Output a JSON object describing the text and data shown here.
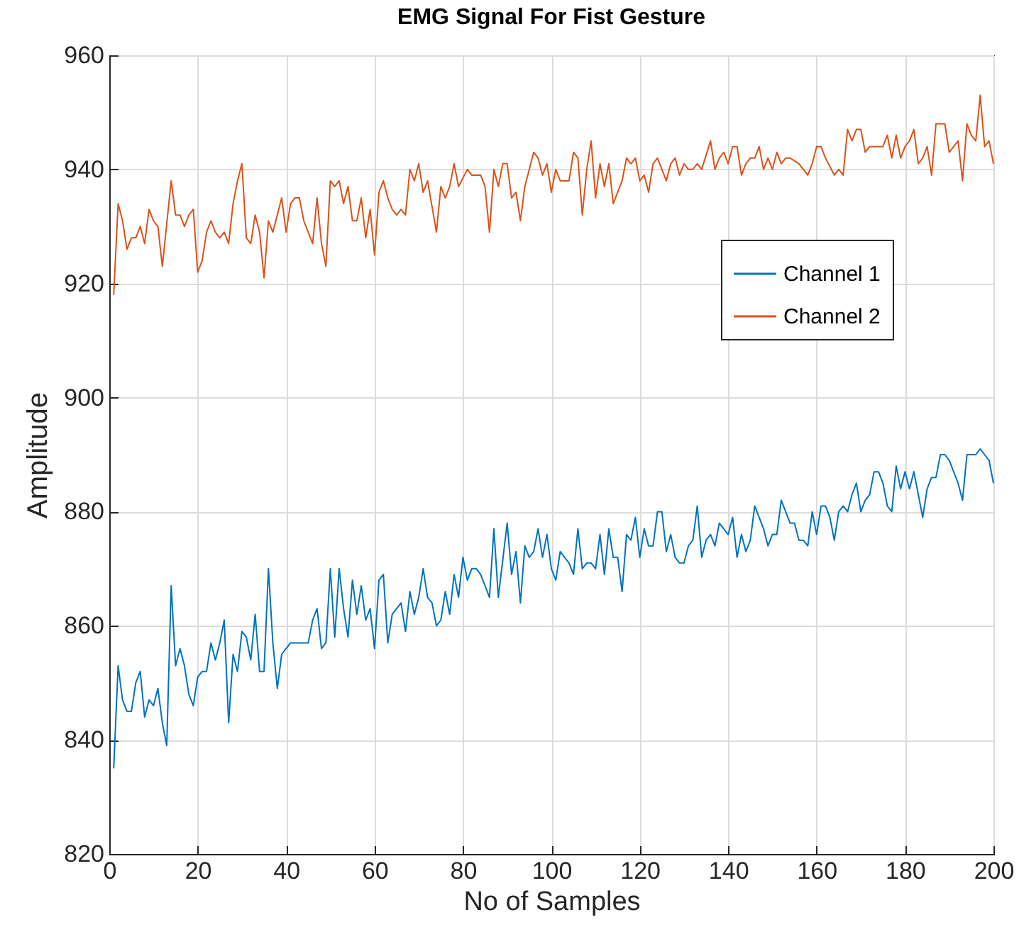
{
  "chart_data": {
    "type": "line",
    "title": "EMG Signal For Fist Gesture",
    "xlabel": "No of Samples",
    "ylabel": "Amplitude",
    "xlim": [
      0,
      200
    ],
    "xticks": [
      0,
      20,
      40,
      60,
      80,
      100,
      120,
      140,
      160,
      180,
      200
    ],
    "ylim": [
      820,
      960
    ],
    "yticks": [
      820,
      840,
      860,
      880,
      900,
      920,
      940,
      960
    ],
    "grid": true,
    "legend": "top right",
    "line_style": "solid",
    "series": [
      {
        "name": "Channel 1",
        "color": "#0072bd",
        "x": [
          1,
          2,
          3,
          4,
          5,
          6,
          7,
          8,
          9,
          10,
          11,
          12,
          13,
          14,
          15,
          16,
          17,
          18,
          19,
          20,
          21,
          22,
          23,
          24,
          25,
          26,
          27,
          28,
          29,
          30,
          31,
          32,
          33,
          34,
          35,
          36,
          37,
          38,
          39,
          40,
          41,
          45,
          46,
          47,
          48,
          49,
          50,
          51,
          52,
          53,
          54,
          55,
          56,
          57,
          58,
          59,
          60,
          61,
          62,
          63,
          64,
          65,
          66,
          67,
          68,
          69,
          70,
          71,
          72,
          73,
          74,
          75,
          76,
          77,
          78,
          79,
          80,
          81,
          82,
          83,
          84,
          85,
          86,
          87,
          88,
          90,
          91,
          92,
          93,
          94,
          95,
          96,
          97,
          98,
          99,
          100,
          101,
          102,
          103,
          104,
          105,
          106,
          107,
          108,
          109,
          110,
          111,
          112,
          113,
          114,
          115,
          116,
          117,
          118,
          119,
          120,
          121,
          122,
          123,
          124,
          125,
          126,
          127,
          128,
          129,
          130,
          131,
          132,
          133,
          134,
          135,
          136,
          137,
          138,
          139,
          140,
          141,
          142,
          143,
          144,
          145,
          146,
          147,
          148,
          149,
          150,
          151,
          152,
          153,
          154,
          155,
          156,
          157,
          158,
          159,
          160,
          161,
          162,
          163,
          164,
          165,
          166,
          167,
          168,
          169,
          170,
          171,
          172,
          173,
          174,
          175,
          176,
          177,
          178,
          179,
          180,
          181,
          182,
          183,
          184,
          185,
          186,
          187,
          188,
          189,
          190,
          191,
          192,
          193,
          194,
          195,
          196,
          197,
          198,
          199,
          200
        ],
        "values": [
          835,
          853,
          847,
          845,
          845,
          850,
          852,
          844,
          847,
          846,
          849,
          843,
          839,
          867,
          853,
          856,
          853,
          848,
          846,
          851,
          852,
          852,
          857,
          854,
          857,
          861,
          843,
          855,
          852,
          859,
          858,
          854,
          862,
          852,
          852,
          870,
          857,
          849,
          855,
          856,
          857,
          857,
          861,
          863,
          856,
          857,
          870,
          858,
          870,
          863,
          858,
          868,
          862,
          867,
          861,
          863,
          856,
          868,
          869,
          857,
          862,
          863,
          864,
          859,
          866,
          862,
          865,
          870,
          865,
          864,
          860,
          861,
          866,
          862,
          869,
          865,
          872,
          868,
          870,
          870,
          869,
          867,
          865,
          877,
          865,
          878,
          869,
          873,
          864,
          874,
          872,
          873,
          877,
          872,
          876,
          870,
          868,
          873,
          872,
          871,
          869,
          877,
          870,
          871,
          871,
          870,
          876,
          869,
          877,
          872,
          872,
          866,
          876,
          875,
          879,
          872,
          877,
          874,
          874,
          880,
          880,
          873,
          876,
          872,
          871,
          871,
          874,
          875,
          881,
          872,
          875,
          876,
          874,
          878,
          877,
          876,
          879,
          872,
          876,
          873,
          875,
          881,
          879,
          877,
          874,
          876,
          876,
          882,
          880,
          878,
          878,
          875,
          875,
          874,
          880,
          876,
          881,
          881,
          879,
          875,
          880,
          881,
          880,
          883,
          885,
          880,
          882,
          883,
          887,
          887,
          885,
          881,
          880,
          888,
          884,
          887,
          884,
          887,
          883,
          879,
          884,
          886,
          886,
          890,
          890,
          889,
          887,
          885,
          882,
          890,
          890,
          890,
          891,
          890,
          889,
          885
        ]
      },
      {
        "name": "Channel 2",
        "color": "#d95319",
        "x": [
          1,
          2,
          3,
          4,
          5,
          6,
          7,
          8,
          9,
          10,
          11,
          12,
          14,
          15,
          16,
          17,
          18,
          19,
          20,
          21,
          22,
          23,
          24,
          25,
          26,
          27,
          28,
          29,
          30,
          31,
          32,
          33,
          34,
          35,
          36,
          37,
          38,
          39,
          40,
          41,
          42,
          43,
          44,
          45,
          46,
          47,
          48,
          49,
          50,
          51,
          52,
          53,
          54,
          55,
          56,
          57,
          58,
          59,
          60,
          61,
          62,
          63,
          64,
          65,
          66,
          67,
          68,
          69,
          70,
          71,
          72,
          74,
          75,
          76,
          77,
          78,
          79,
          81,
          82,
          84,
          85,
          86,
          87,
          88,
          89,
          90,
          91,
          92,
          93,
          94,
          96,
          97,
          98,
          99,
          100,
          101,
          102,
          103,
          104,
          105,
          106,
          107,
          108,
          109,
          110,
          111,
          112,
          113,
          114,
          116,
          117,
          118,
          119,
          120,
          121,
          122,
          123,
          124,
          126,
          127,
          128,
          129,
          130,
          131,
          132,
          133,
          134,
          136,
          137,
          138,
          139,
          140,
          141,
          142,
          143,
          144,
          145,
          146,
          147,
          148,
          149,
          150,
          151,
          152,
          153,
          154,
          156,
          157,
          158,
          159,
          160,
          161,
          162,
          164,
          165,
          166,
          167,
          168,
          169,
          170,
          171,
          172,
          173,
          175,
          176,
          177,
          178,
          179,
          180,
          181,
          182,
          183,
          184,
          185,
          186,
          187,
          189,
          190,
          191,
          192,
          193,
          194,
          195,
          196,
          197,
          198,
          199,
          200
        ],
        "values": [
          918,
          934,
          931,
          926,
          928,
          928,
          930,
          927,
          933,
          931,
          930,
          923,
          938,
          932,
          932,
          930,
          932,
          933,
          922,
          924,
          929,
          931,
          929,
          928,
          929,
          927,
          934,
          938,
          941,
          928,
          927,
          932,
          929,
          921,
          931,
          929,
          932,
          935,
          929,
          934,
          935,
          935,
          931,
          929,
          927,
          935,
          927,
          923,
          938,
          937,
          938,
          934,
          937,
          931,
          931,
          935,
          928,
          933,
          925,
          936,
          938,
          935,
          933,
          932,
          933,
          932,
          940,
          938,
          941,
          936,
          938,
          929,
          937,
          935,
          937,
          941,
          937,
          940,
          939,
          939,
          937,
          929,
          940,
          937,
          941,
          941,
          935,
          936,
          931,
          937,
          943,
          942,
          939,
          941,
          936,
          940,
          938,
          938,
          938,
          943,
          942,
          932,
          940,
          945,
          935,
          941,
          937,
          941,
          934,
          938,
          942,
          941,
          942,
          938,
          939,
          936,
          941,
          942,
          938,
          941,
          942,
          939,
          941,
          940,
          940,
          941,
          940,
          945,
          940,
          942,
          943,
          941,
          944,
          944,
          939,
          941,
          942,
          942,
          944,
          940,
          942,
          940,
          943,
          941,
          942,
          942,
          941,
          940,
          939,
          941,
          944,
          944,
          942,
          939,
          940,
          939,
          947,
          945,
          947,
          947,
          943,
          944,
          944,
          944,
          946,
          942,
          946,
          942,
          944,
          945,
          947,
          941,
          942,
          944,
          939,
          948,
          948,
          943,
          944,
          945,
          938,
          948,
          946,
          945,
          953,
          944,
          945,
          941
        ]
      }
    ]
  }
}
